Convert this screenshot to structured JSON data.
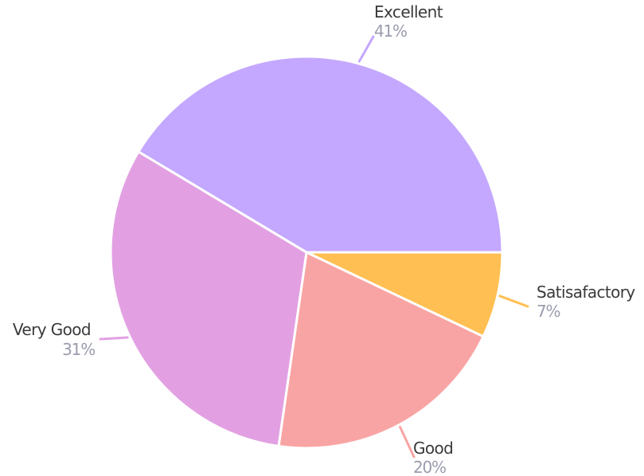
{
  "chart_data": {
    "type": "pie",
    "title": "",
    "start": "top",
    "direction": "clockwise",
    "legend": "none",
    "slices": [
      {
        "label": "Excellent",
        "value": 41,
        "percent_label": "41%",
        "color": "#c4a8ff",
        "leader_color": "#c4a8ff"
      },
      {
        "label": "Satisafactory",
        "value": 7,
        "percent_label": "7%",
        "color": "#ffbf52",
        "leader_color": "#ffbf52"
      },
      {
        "label": "Good",
        "value": 20,
        "percent_label": "20%",
        "color": "#f9a4a4",
        "leader_color": "#f9a4a4"
      },
      {
        "label": "Very Good",
        "value": 31,
        "percent_label": "31%",
        "color": "#e2a0e2",
        "leader_color": "#e2a0e2"
      }
    ]
  }
}
